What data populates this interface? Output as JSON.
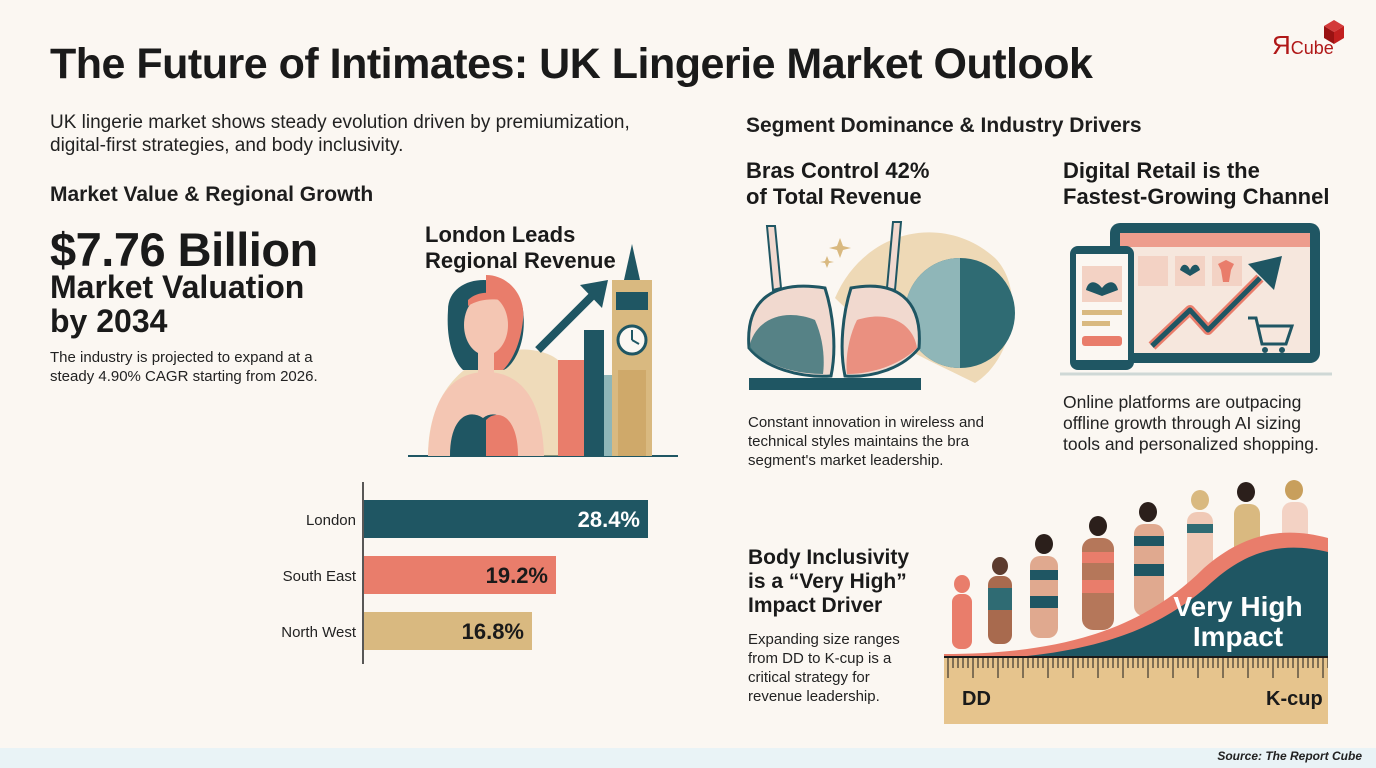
{
  "title": "The Future of Intimates: UK Lingerie Market Outlook",
  "logo": {
    "text": "Cube",
    "mark": "Я"
  },
  "intro": "UK lingerie market shows steady evolution driven by premiumization, digital-first strategies, and body inclusivity.",
  "market": {
    "heading": "Market Value & Regional Growth",
    "value": "$7.76 Billion",
    "label": "Market Valuation by 2034",
    "description": "The industry is projected to expand at a steady 4.90% CAGR starting from 2026."
  },
  "london": {
    "title": "London Leads Regional Revenue"
  },
  "segments": {
    "heading": "Segment Dominance & Industry Drivers",
    "bras": {
      "title": "Bras Control 42% of Total Revenue",
      "description": "Constant innovation in wireless and technical styles maintains the bra segment's market leadership."
    },
    "digital": {
      "title": "Digital Retail is the Fastest-Growing Channel",
      "description": "Online platforms are outpacing offline growth through AI sizing tools and personalized shopping."
    },
    "inclusivity": {
      "title": "Body Inclusivity is a “Very High” Impact Driver",
      "description": "Expanding size ranges from DD to K-cup is a critical strategy for revenue leadership.",
      "impact_label": "Very High Impact",
      "scale_start": "DD",
      "scale_end": "K-cup"
    }
  },
  "source": "Source: The Report Cube",
  "colors": {
    "teal": "#1f5663",
    "coral": "#e97d6b",
    "gold": "#d9b980",
    "accent_red": "#b01818"
  },
  "chart_data": {
    "type": "bar",
    "orientation": "horizontal",
    "categories": [
      "London",
      "South East",
      "North West"
    ],
    "values": [
      28.4,
      19.2,
      16.8
    ],
    "value_labels": [
      "28.4%",
      "19.2%",
      "16.8%"
    ],
    "colors": [
      "#1f5663",
      "#e97d6b",
      "#d9b980"
    ],
    "xlim": [
      0,
      32
    ],
    "grid": false
  }
}
